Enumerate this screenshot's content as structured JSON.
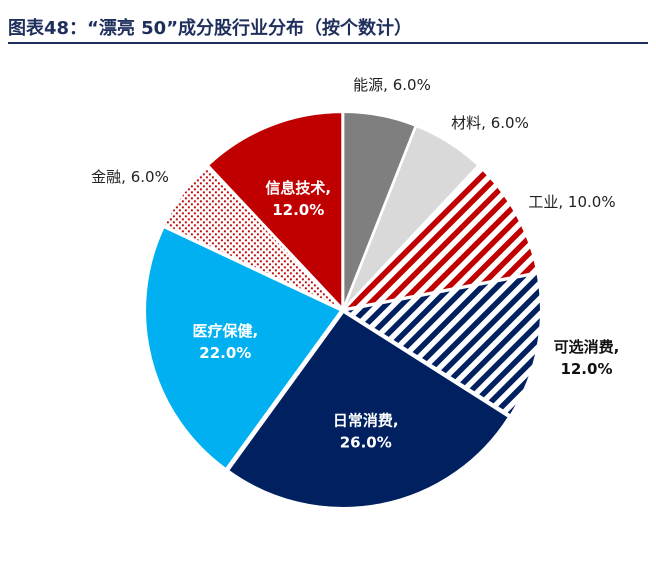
{
  "title": "图表48：“漂亮 50”成分股行业分布（按个数计）",
  "chart_data": {
    "type": "pie",
    "title": "图表48：“漂亮 50”成分股行业分布（按个数计）",
    "slices": [
      {
        "name": "能源",
        "value": 6.0,
        "value_label": "6.0%",
        "color": "#7f7f7f",
        "pattern": "solid",
        "label_style": "outside"
      },
      {
        "name": "材料",
        "value": 6.0,
        "value_label": "6.0%",
        "color": "#d9d9d9",
        "pattern": "solid",
        "label_style": "outside"
      },
      {
        "name": "工业",
        "value": 10.0,
        "value_label": "10.0%",
        "color": "#c00000",
        "pattern": "diagonal-stripes",
        "label_style": "outside"
      },
      {
        "name": "可选消费",
        "value": 12.0,
        "value_label": "12.0%",
        "color": "#002060",
        "pattern": "diagonal-stripes",
        "label_style": "outside-bold"
      },
      {
        "name": "日常消费",
        "value": 26.0,
        "value_label": "26.0%",
        "color": "#002060",
        "pattern": "solid",
        "label_style": "inside"
      },
      {
        "name": "医疗保健",
        "value": 22.0,
        "value_label": "22.0%",
        "color": "#00b0f0",
        "pattern": "solid",
        "label_style": "inside"
      },
      {
        "name": "金融",
        "value": 6.0,
        "value_label": "6.0%",
        "color": "#c00000",
        "pattern": "dots",
        "label_style": "outside"
      },
      {
        "name": "信息技术",
        "value": 12.0,
        "value_label": "12.0%",
        "color": "#c00000",
        "pattern": "solid",
        "label_style": "inside"
      }
    ],
    "start_angle_deg": 0,
    "direction": "clockwise",
    "legend": "none"
  }
}
